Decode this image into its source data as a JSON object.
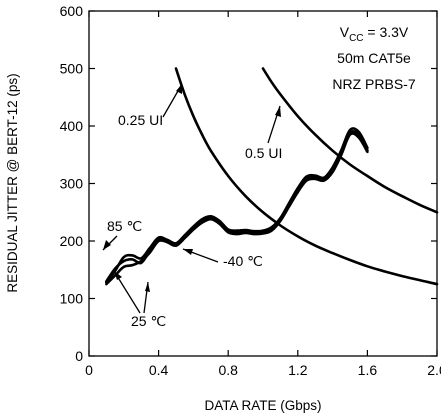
{
  "chart_data": {
    "type": "line",
    "title": "",
    "xlabel": "DATA RATE (Gbps)",
    "ylabel": "RESIDUAL JITTER @ BERT-12 (ps)",
    "xlim": [
      0,
      2.0
    ],
    "ylim": [
      0,
      600
    ],
    "xticks": [
      "0",
      "0.4",
      "0.8",
      "1.2",
      "1.6",
      "2.0"
    ],
    "yticks": [
      "0",
      "100",
      "200",
      "300",
      "400",
      "500",
      "600"
    ],
    "grid": false,
    "conditions": {
      "vcc_prefix": "V",
      "vcc_sub": "CC",
      "vcc_value": " = 3.3V",
      "cable": "50m CAT5e",
      "pattern": "NRZ PRBS-7"
    },
    "series": [
      {
        "name": "25 ℃",
        "values": [
          [
            0.1,
            125
          ],
          [
            0.15,
            140
          ],
          [
            0.2,
            155
          ],
          [
            0.25,
            158
          ],
          [
            0.3,
            165
          ],
          [
            0.35,
            180
          ],
          [
            0.4,
            200
          ],
          [
            0.45,
            198
          ],
          [
            0.5,
            192
          ],
          [
            0.55,
            205
          ],
          [
            0.6,
            220
          ],
          [
            0.65,
            232
          ],
          [
            0.7,
            238
          ],
          [
            0.75,
            230
          ],
          [
            0.8,
            215
          ],
          [
            0.85,
            212
          ],
          [
            0.9,
            214
          ],
          [
            0.95,
            212
          ],
          [
            1.0,
            213
          ],
          [
            1.05,
            218
          ],
          [
            1.1,
            235
          ],
          [
            1.15,
            260
          ],
          [
            1.2,
            285
          ],
          [
            1.25,
            305
          ],
          [
            1.3,
            308
          ],
          [
            1.35,
            305
          ],
          [
            1.4,
            320
          ],
          [
            1.45,
            350
          ],
          [
            1.5,
            385
          ],
          [
            1.55,
            380
          ],
          [
            1.6,
            355
          ]
        ]
      },
      {
        "name": "85 ℃",
        "values": [
          [
            0.1,
            128
          ],
          [
            0.15,
            148
          ],
          [
            0.2,
            172
          ],
          [
            0.25,
            175
          ],
          [
            0.3,
            170
          ],
          [
            0.35,
            188
          ],
          [
            0.4,
            206
          ],
          [
            0.45,
            202
          ],
          [
            0.5,
            196
          ],
          [
            0.55,
            210
          ],
          [
            0.6,
            225
          ],
          [
            0.65,
            238
          ],
          [
            0.7,
            243
          ],
          [
            0.75,
            235
          ],
          [
            0.8,
            220
          ],
          [
            0.85,
            218
          ],
          [
            0.9,
            219
          ],
          [
            0.95,
            217
          ],
          [
            1.0,
            218
          ],
          [
            1.05,
            224
          ],
          [
            1.1,
            240
          ],
          [
            1.15,
            266
          ],
          [
            1.2,
            292
          ],
          [
            1.25,
            312
          ],
          [
            1.3,
            314
          ],
          [
            1.35,
            310
          ],
          [
            1.4,
            328
          ],
          [
            1.45,
            358
          ],
          [
            1.5,
            393
          ],
          [
            1.55,
            390
          ],
          [
            1.6,
            362
          ]
        ]
      },
      {
        "name": "-40 ℃",
        "values": [
          [
            0.1,
            130
          ],
          [
            0.15,
            152
          ],
          [
            0.2,
            165
          ],
          [
            0.25,
            168
          ],
          [
            0.3,
            162
          ],
          [
            0.35,
            183
          ],
          [
            0.4,
            203
          ],
          [
            0.45,
            198
          ],
          [
            0.5,
            192
          ],
          [
            0.55,
            206
          ],
          [
            0.6,
            222
          ],
          [
            0.65,
            235
          ],
          [
            0.7,
            240
          ],
          [
            0.75,
            232
          ],
          [
            0.8,
            217
          ],
          [
            0.85,
            215
          ],
          [
            0.9,
            216
          ],
          [
            0.95,
            214
          ],
          [
            1.0,
            215
          ],
          [
            1.05,
            221
          ],
          [
            1.1,
            237
          ],
          [
            1.15,
            263
          ],
          [
            1.2,
            288
          ],
          [
            1.25,
            308
          ],
          [
            1.3,
            310
          ],
          [
            1.35,
            307
          ],
          [
            1.4,
            324
          ],
          [
            1.45,
            354
          ],
          [
            1.5,
            388
          ],
          [
            1.55,
            385
          ],
          [
            1.6,
            358
          ]
        ]
      },
      {
        "name": "0.25 UI",
        "values": [
          [
            0.5,
            500
          ],
          [
            0.55,
            455
          ],
          [
            0.6,
            417
          ],
          [
            0.65,
            385
          ],
          [
            0.7,
            357
          ],
          [
            0.8,
            313
          ],
          [
            0.9,
            278
          ],
          [
            1.0,
            250
          ],
          [
            1.1,
            227
          ],
          [
            1.2,
            208
          ],
          [
            1.3,
            192
          ],
          [
            1.4,
            179
          ],
          [
            1.5,
            167
          ],
          [
            1.6,
            156
          ],
          [
            1.7,
            147
          ],
          [
            1.8,
            139
          ],
          [
            1.9,
            132
          ],
          [
            2.0,
            125
          ]
        ]
      },
      {
        "name": "0.5 UI",
        "values": [
          [
            1.0,
            500
          ],
          [
            1.05,
            476
          ],
          [
            1.1,
            455
          ],
          [
            1.2,
            417
          ],
          [
            1.3,
            385
          ],
          [
            1.4,
            357
          ],
          [
            1.5,
            333
          ],
          [
            1.6,
            313
          ],
          [
            1.7,
            294
          ],
          [
            1.8,
            278
          ],
          [
            1.9,
            263
          ],
          [
            2.0,
            250
          ]
        ]
      }
    ],
    "annotations": [
      {
        "text": "0.25 UI",
        "series": "0.25 UI"
      },
      {
        "text": "0.5 UI",
        "series": "0.5 UI"
      },
      {
        "text": "85 ℃",
        "series": "85 ℃"
      },
      {
        "text": "-40 ℃",
        "series": "-40 ℃"
      },
      {
        "text": "25 ℃",
        "series": "25 ℃"
      }
    ],
    "colors": {
      "line": "#000000",
      "background": "#ffffff"
    }
  }
}
